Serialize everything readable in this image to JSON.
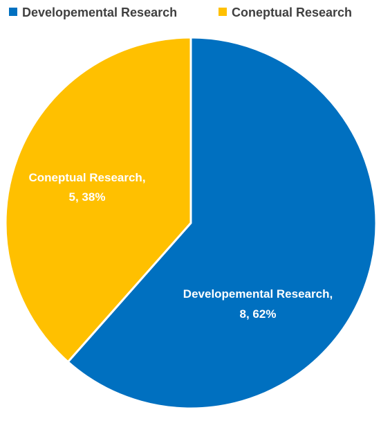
{
  "chart_data": {
    "type": "pie",
    "title": "",
    "legend_position": "top",
    "series": [
      {
        "name": "Developemental Research",
        "value": 8,
        "percent": "62%",
        "color": "#0070C0",
        "label_line1": "Developemental Research,",
        "label_line2": "8, 62%"
      },
      {
        "name": "Coneptual Research",
        "value": 5,
        "percent": "38%",
        "color": "#FFC000",
        "label_line1": "Coneptual Research,",
        "label_line2": "5, 38%"
      }
    ]
  }
}
